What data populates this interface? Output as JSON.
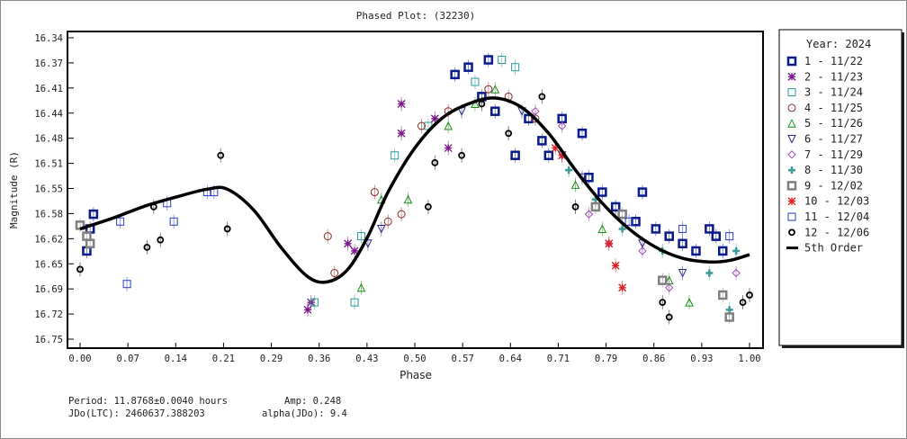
{
  "chart_data": {
    "type": "scatter",
    "title": "Phased Plot: (32230)",
    "xlabel": "Phase",
    "ylabel": "Magnitude (R)",
    "xlim": [
      0.0,
      1.0
    ],
    "ylim": [
      16.34,
      16.75
    ],
    "y_inverted": true,
    "xticks": [
      "0.00",
      "0.07",
      "0.14",
      "0.21",
      "0.29",
      "0.36",
      "0.43",
      "0.50",
      "0.57",
      "0.64",
      "0.71",
      "0.79",
      "0.86",
      "0.93",
      "1.00"
    ],
    "yticks": [
      "16.34",
      "16.37",
      "16.41",
      "16.44",
      "16.48",
      "16.51",
      "16.55",
      "16.58",
      "16.62",
      "16.65",
      "16.69",
      "16.72",
      "16.75"
    ],
    "legend_title": "Year: 2024",
    "legend_position": "right",
    "series": [
      {
        "name": "1 - 11/22",
        "marker": "bold-square",
        "color": "#0a1a8c",
        "points": [
          [
            0.01,
            16.63
          ],
          [
            0.015,
            16.6
          ],
          [
            0.02,
            16.58
          ],
          [
            0.56,
            16.39
          ],
          [
            0.58,
            16.38
          ],
          [
            0.61,
            16.37
          ],
          [
            0.6,
            16.42
          ],
          [
            0.62,
            16.44
          ],
          [
            0.65,
            16.5
          ],
          [
            0.67,
            16.45
          ],
          [
            0.69,
            16.48
          ],
          [
            0.7,
            16.5
          ],
          [
            0.72,
            16.45
          ],
          [
            0.75,
            16.47
          ],
          [
            0.76,
            16.53
          ],
          [
            0.78,
            16.55
          ],
          [
            0.8,
            16.57
          ],
          [
            0.83,
            16.59
          ],
          [
            0.84,
            16.55
          ],
          [
            0.86,
            16.6
          ],
          [
            0.88,
            16.61
          ],
          [
            0.9,
            16.62
          ],
          [
            0.92,
            16.63
          ],
          [
            0.94,
            16.6
          ],
          [
            0.95,
            16.61
          ],
          [
            0.96,
            16.63
          ]
        ]
      },
      {
        "name": "2 - 11/23",
        "marker": "asterisk",
        "color": "#7a1a8a",
        "points": [
          [
            0.34,
            16.71
          ],
          [
            0.345,
            16.7
          ],
          [
            0.4,
            16.62
          ],
          [
            0.41,
            16.63
          ],
          [
            0.48,
            16.47
          ],
          [
            0.48,
            16.43
          ],
          [
            0.53,
            16.45
          ],
          [
            0.55,
            16.49
          ]
        ]
      },
      {
        "name": "3 - 11/24",
        "marker": "square",
        "color": "#2a9a9a",
        "points": [
          [
            0.35,
            16.7
          ],
          [
            0.41,
            16.7
          ],
          [
            0.42,
            16.61
          ],
          [
            0.47,
            16.5
          ],
          [
            0.52,
            16.46
          ],
          [
            0.59,
            16.4
          ],
          [
            0.63,
            16.37
          ],
          [
            0.65,
            16.38
          ]
        ]
      },
      {
        "name": "4 - 11/25",
        "marker": "circle",
        "color": "#8a2a2a",
        "points": [
          [
            0.37,
            16.61
          ],
          [
            0.38,
            16.66
          ],
          [
            0.44,
            16.55
          ],
          [
            0.46,
            16.59
          ],
          [
            0.48,
            16.58
          ],
          [
            0.51,
            16.46
          ],
          [
            0.55,
            16.44
          ],
          [
            0.61,
            16.41
          ],
          [
            0.64,
            16.42
          ],
          [
            0.68,
            16.45
          ]
        ]
      },
      {
        "name": "5 - 11/26",
        "marker": "triangle-up",
        "color": "#1a8a1a",
        "points": [
          [
            0.42,
            16.68
          ],
          [
            0.45,
            16.56
          ],
          [
            0.49,
            16.56
          ],
          [
            0.55,
            16.46
          ],
          [
            0.59,
            16.43
          ],
          [
            0.62,
            16.41
          ],
          [
            0.74,
            16.54
          ],
          [
            0.78,
            16.6
          ],
          [
            0.88,
            16.67
          ],
          [
            0.91,
            16.7
          ]
        ]
      },
      {
        "name": "6 - 11/27",
        "marker": "triangle-down",
        "color": "#2a2a8a",
        "points": [
          [
            0.43,
            16.62
          ],
          [
            0.45,
            16.6
          ],
          [
            0.57,
            16.44
          ],
          [
            0.66,
            16.44
          ],
          [
            0.72,
            16.5
          ],
          [
            0.75,
            16.53
          ],
          [
            0.84,
            16.62
          ],
          [
            0.9,
            16.66
          ]
        ]
      },
      {
        "name": "7 - 11/29",
        "marker": "diamond",
        "color": "#9a4ab0",
        "points": [
          [
            0.68,
            16.44
          ],
          [
            0.72,
            16.46
          ],
          [
            0.76,
            16.58
          ],
          [
            0.79,
            16.62
          ],
          [
            0.84,
            16.63
          ],
          [
            0.88,
            16.68
          ],
          [
            0.98,
            16.66
          ]
        ]
      },
      {
        "name": "8 - 11/30",
        "marker": "cross",
        "color": "#3a9a9a",
        "points": [
          [
            0.73,
            16.52
          ],
          [
            0.77,
            16.56
          ],
          [
            0.81,
            16.6
          ],
          [
            0.87,
            16.63
          ],
          [
            0.94,
            16.66
          ],
          [
            0.98,
            16.63
          ],
          [
            0.97,
            16.71
          ]
        ]
      },
      {
        "name": "9 - 12/02",
        "marker": "bold-square",
        "color": "#808080",
        "points": [
          [
            0.0,
            16.595
          ],
          [
            0.01,
            16.61
          ],
          [
            0.015,
            16.62
          ],
          [
            0.77,
            16.57
          ],
          [
            0.81,
            16.58
          ],
          [
            0.87,
            16.67
          ],
          [
            0.96,
            16.69
          ],
          [
            0.97,
            16.72
          ]
        ]
      },
      {
        "name": "10 - 12/03",
        "marker": "asterisk",
        "color": "#e02020",
        "points": [
          [
            0.71,
            16.49
          ],
          [
            0.72,
            16.5
          ],
          [
            0.79,
            16.62
          ],
          [
            0.8,
            16.65
          ],
          [
            0.81,
            16.68
          ]
        ]
      },
      {
        "name": "11 - 12/04",
        "marker": "square",
        "color": "#2a3ad0",
        "points": [
          [
            0.07,
            16.675
          ],
          [
            0.06,
            16.59
          ],
          [
            0.13,
            16.565
          ],
          [
            0.14,
            16.59
          ],
          [
            0.19,
            16.55
          ],
          [
            0.2,
            16.55
          ],
          [
            0.82,
            16.59
          ],
          [
            0.9,
            16.6
          ],
          [
            0.97,
            16.61
          ]
        ]
      },
      {
        "name": "12 - 12/06",
        "marker": "circle-bold",
        "color": "#000000",
        "points": [
          [
            0.0,
            16.655
          ],
          [
            0.1,
            16.625
          ],
          [
            0.11,
            16.57
          ],
          [
            0.12,
            16.615
          ],
          [
            0.21,
            16.5
          ],
          [
            0.22,
            16.6
          ],
          [
            0.52,
            16.57
          ],
          [
            0.53,
            16.51
          ],
          [
            0.57,
            16.5
          ],
          [
            0.6,
            16.43
          ],
          [
            0.64,
            16.47
          ],
          [
            0.69,
            16.42
          ],
          [
            0.74,
            16.57
          ],
          [
            0.88,
            16.72
          ],
          [
            0.87,
            16.7
          ],
          [
            0.99,
            16.7
          ],
          [
            1.0,
            16.69
          ]
        ]
      }
    ],
    "fit": {
      "name": "5th Order",
      "color": "#000000",
      "points": [
        [
          0.0,
          16.6
        ],
        [
          0.05,
          16.585
        ],
        [
          0.1,
          16.568
        ],
        [
          0.15,
          16.555
        ],
        [
          0.19,
          16.546
        ],
        [
          0.22,
          16.546
        ],
        [
          0.26,
          16.575
        ],
        [
          0.3,
          16.625
        ],
        [
          0.34,
          16.665
        ],
        [
          0.37,
          16.672
        ],
        [
          0.4,
          16.655
        ],
        [
          0.43,
          16.61
        ],
        [
          0.46,
          16.55
        ],
        [
          0.5,
          16.49
        ],
        [
          0.54,
          16.45
        ],
        [
          0.58,
          16.43
        ],
        [
          0.62,
          16.422
        ],
        [
          0.66,
          16.435
        ],
        [
          0.7,
          16.47
        ],
        [
          0.74,
          16.52
        ],
        [
          0.78,
          16.565
        ],
        [
          0.82,
          16.6
        ],
        [
          0.86,
          16.625
        ],
        [
          0.9,
          16.64
        ],
        [
          0.94,
          16.645
        ],
        [
          0.97,
          16.643
        ],
        [
          1.0,
          16.635
        ]
      ]
    }
  },
  "info": {
    "period": "Period: 11.8768±0.0040 hours",
    "amp": "Amp: 0.248",
    "jdo": "JDo(LTC): 2460637.388203",
    "alpha": "alpha(JDo): 9.4"
  }
}
